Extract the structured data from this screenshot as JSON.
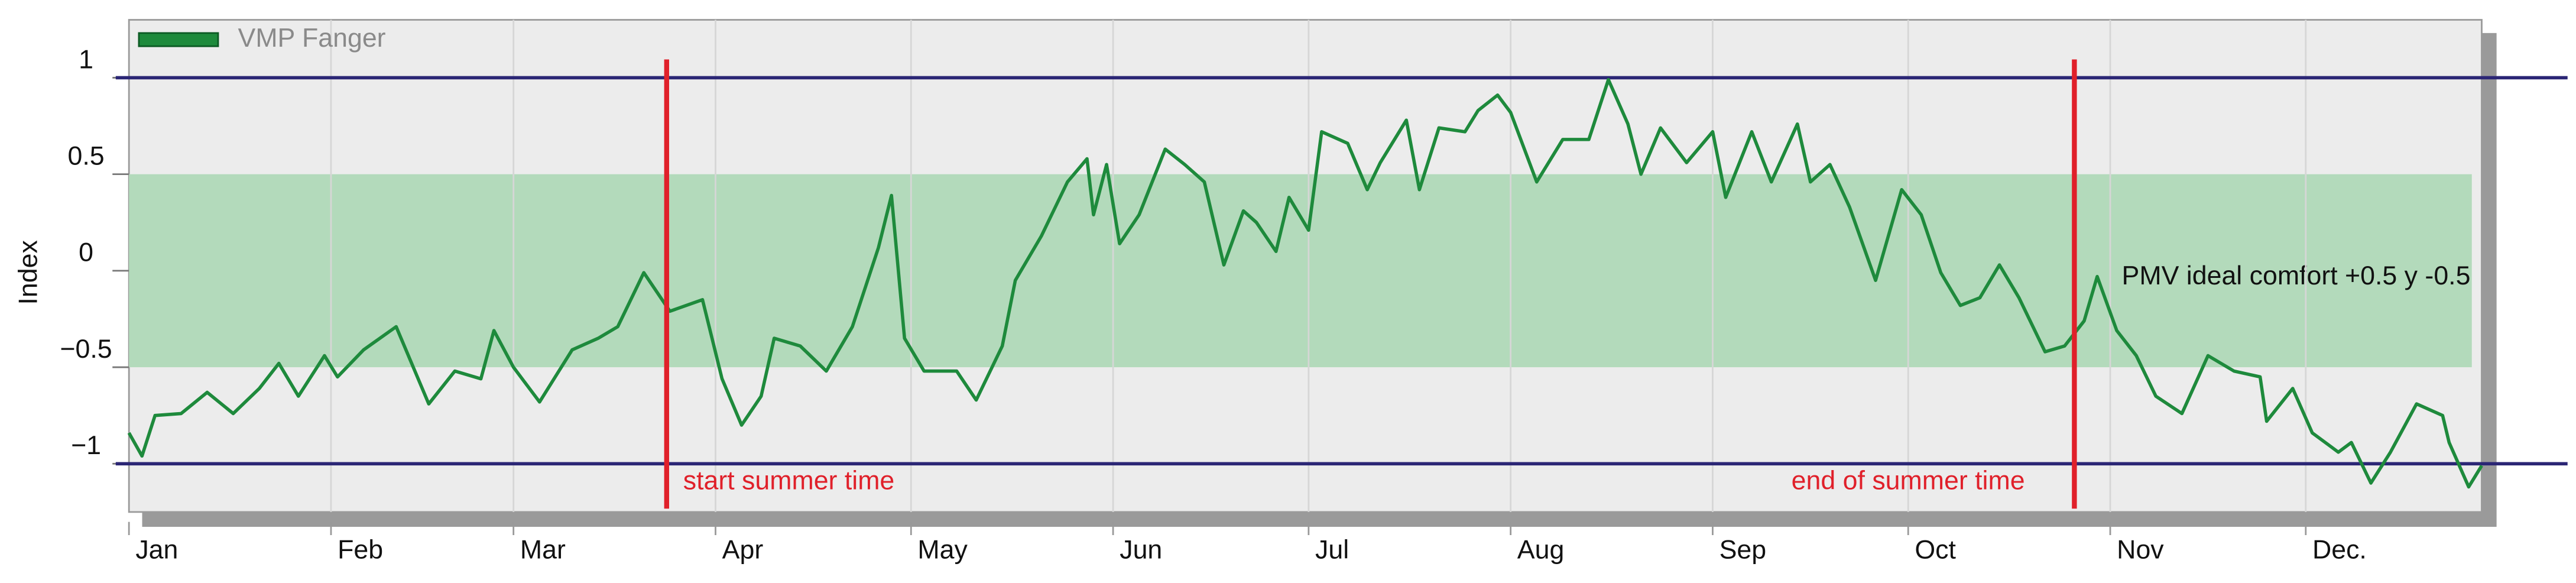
{
  "chart_data": {
    "type": "line",
    "ylabel": "Index",
    "xlim": [
      0,
      361
    ],
    "ylim": [
      -1.25,
      1.3
    ],
    "xticks": [
      {
        "value": 0,
        "label": "Jan"
      },
      {
        "value": 31,
        "label": "Feb"
      },
      {
        "value": 59,
        "label": "Mar"
      },
      {
        "value": 90,
        "label": "Apr"
      },
      {
        "value": 120,
        "label": "May"
      },
      {
        "value": 151,
        "label": "Jun"
      },
      {
        "value": 181,
        "label": "Jul"
      },
      {
        "value": 212,
        "label": "Aug"
      },
      {
        "value": 243,
        "label": "Sep"
      },
      {
        "value": 273,
        "label": "Oct"
      },
      {
        "value": 304,
        "label": "Nov"
      },
      {
        "value": 334,
        "label": "Dec."
      }
    ],
    "yticks": [
      1,
      0.5,
      0,
      {
        "value": -0.5,
        "label": "−0.5"
      },
      {
        "value": -1,
        "label": "−1"
      }
    ],
    "grid": true,
    "legend": "top-left",
    "band": {
      "range": [
        -0.5,
        0.5
      ],
      "label": "PMV ideal comfort +0.5 y -0.5",
      "color": "#b3dabb"
    },
    "reference_lines": {
      "values": [
        1,
        -1
      ],
      "color": "#2b2675"
    },
    "vlines": {
      "color": "#e0202a",
      "lines": [
        {
          "x": 82.5,
          "label": "start summer time"
        },
        {
          "x": 298.5,
          "label": "end of summer time"
        }
      ]
    },
    "x": [
      0,
      2,
      4,
      8,
      12,
      16,
      20,
      23,
      26,
      30,
      32,
      36,
      41,
      46,
      50,
      54,
      56,
      59,
      63,
      68,
      72,
      75,
      79,
      83,
      88,
      91,
      94,
      97,
      99,
      103,
      107,
      111,
      115,
      117,
      119,
      122,
      127,
      130,
      134,
      136,
      140,
      144,
      147,
      148,
      150,
      152,
      155,
      159,
      162,
      165,
      168,
      171,
      173,
      176,
      178,
      181,
      183,
      187,
      190,
      192,
      196,
      198,
      201,
      205,
      207,
      210,
      212,
      216,
      220,
      224,
      227,
      230,
      232,
      235,
      239,
      243,
      245,
      249,
      252,
      256,
      258,
      261,
      264,
      268,
      272,
      275,
      278,
      281,
      284,
      287,
      290,
      294,
      297,
      300,
      302,
      305,
      308,
      311,
      315,
      319,
      323,
      327,
      328,
      332,
      335,
      339,
      341,
      344,
      347,
      351,
      355,
      356,
      359,
      361
    ],
    "series": [
      {
        "name": "VMP Fanger",
        "color": "#1e8a3c",
        "values": [
          -0.84,
          -0.96,
          -0.75,
          -0.74,
          -0.63,
          -0.74,
          -0.61,
          -0.48,
          -0.65,
          -0.44,
          -0.55,
          -0.41,
          -0.29,
          -0.69,
          -0.52,
          -0.56,
          -0.31,
          -0.5,
          -0.68,
          -0.41,
          -0.35,
          -0.29,
          -0.01,
          -0.21,
          -0.15,
          -0.56,
          -0.8,
          -0.65,
          -0.35,
          -0.39,
          -0.52,
          -0.29,
          0.12,
          0.39,
          -0.35,
          -0.52,
          -0.52,
          -0.67,
          -0.39,
          -0.05,
          0.18,
          0.46,
          0.58,
          0.29,
          0.55,
          0.14,
          0.29,
          0.63,
          0.55,
          0.46,
          0.03,
          0.31,
          0.25,
          0.1,
          0.38,
          0.21,
          0.72,
          0.66,
          0.42,
          0.56,
          0.78,
          0.42,
          0.74,
          0.72,
          0.83,
          0.91,
          0.82,
          0.46,
          0.68,
          0.68,
          0.99,
          0.76,
          0.5,
          0.74,
          0.56,
          0.72,
          0.38,
          0.72,
          0.46,
          0.76,
          0.46,
          0.55,
          0.33,
          -0.05,
          0.42,
          0.29,
          -0.01,
          -0.18,
          -0.14,
          0.03,
          -0.14,
          -0.42,
          -0.39,
          -0.26,
          -0.03,
          -0.31,
          -0.44,
          -0.65,
          -0.74,
          -0.44,
          -0.52,
          -0.55,
          -0.78,
          -0.61,
          -0.84,
          -0.94,
          -0.89,
          -1.1,
          -0.94,
          -0.69,
          -0.75,
          -0.89,
          -1.12,
          -1.01
        ]
      }
    ]
  }
}
